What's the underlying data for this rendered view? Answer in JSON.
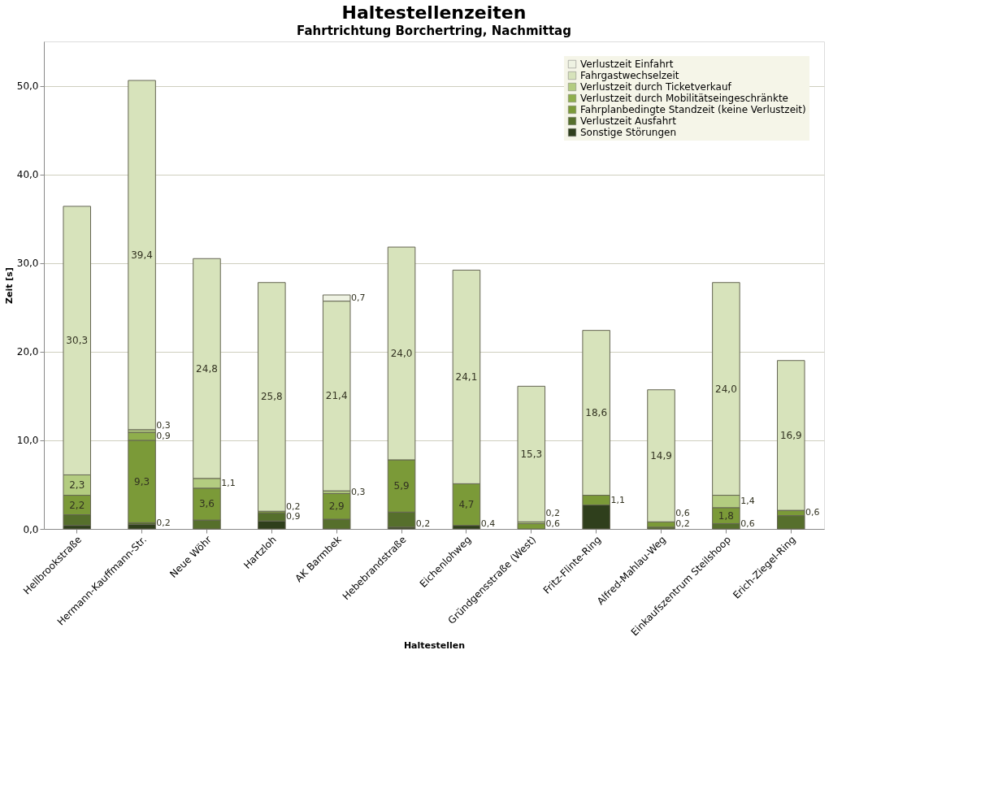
{
  "chart_data": {
    "type": "bar",
    "stacked": true,
    "title": "Haltestellenzeiten",
    "subtitle": "Fahrtrichtung Borchertring, Nachmittag",
    "xlabel": "Haltestellen",
    "ylabel": "Zeit [s]",
    "categories": [
      "Hellbrookstraße",
      "Hermann-Kauffmann-Str.",
      "Neue Wöhr",
      "Hartzloh",
      "AK Barmbek",
      "Hebebrandstraße",
      "Eichenlohweg",
      "Gründgensstraße (West)",
      "Fritz-Flinte-Ring",
      "Alfred-Mahlau-Weg",
      "Einkaufszentrum Steilshoop",
      "Erich-Ziegel-Ring"
    ],
    "series": [
      {
        "name": "Sonstige Störungen",
        "color": "#2f3f1c",
        "values": [
          0.4,
          0.5,
          null,
          0.9,
          null,
          0.2,
          0.4,
          null,
          2.7,
          null,
          null,
          null
        ],
        "value_labels": [
          null,
          null,
          null,
          null,
          null,
          "0,2",
          "0,4",
          null,
          null,
          null,
          null,
          null
        ]
      },
      {
        "name": "Verlustzeit Ausfahrt",
        "color": "#566f2c",
        "values": [
          1.2,
          0.2,
          1.0,
          0.9,
          1.1,
          1.7,
          null,
          null,
          null,
          0.2,
          0.6,
          1.5
        ],
        "value_labels": [
          null,
          "0,2",
          null,
          "0,9",
          null,
          null,
          null,
          null,
          null,
          "0,2",
          "0,6",
          null
        ]
      },
      {
        "name": "Fahrplanbedingte Standzeit (keine Verlustzeit)",
        "color": "#7b9a38",
        "values": [
          2.2,
          9.3,
          3.6,
          0.2,
          2.9,
          5.9,
          4.7,
          0.6,
          1.1,
          0.6,
          1.8,
          0.6
        ],
        "value_labels": [
          "2,2",
          "9,3",
          "3,6",
          "0,2",
          "2,9",
          "5,9",
          "4,7",
          "0,6",
          "1,1",
          "0,6",
          "1,8",
          "0,6"
        ]
      },
      {
        "name": "Verlustzeit durch Mobilitätseingeschränkte",
        "color": "#8fae4c",
        "values": [
          null,
          0.9,
          null,
          null,
          null,
          null,
          null,
          null,
          null,
          null,
          null,
          null
        ],
        "value_labels": [
          null,
          "0,9",
          null,
          null,
          null,
          null,
          null,
          null,
          null,
          null,
          null,
          null
        ]
      },
      {
        "name": "Verlustzeit durch Ticketverkauf",
        "color": "#b3cc80",
        "values": [
          2.3,
          0.3,
          1.1,
          null,
          0.3,
          null,
          null,
          0.2,
          null,
          null,
          1.4,
          null
        ],
        "value_labels": [
          "2,3",
          "0,3",
          "1,1",
          null,
          "0,3",
          null,
          null,
          "0,2",
          null,
          null,
          "1,4",
          null
        ]
      },
      {
        "name": "Fahrgastwechselzeit",
        "color": "#d7e3bb",
        "values": [
          30.3,
          39.4,
          24.8,
          25.8,
          21.4,
          24.0,
          24.1,
          15.3,
          18.6,
          14.9,
          24.0,
          16.9
        ],
        "value_labels": [
          "30,3",
          "39,4",
          "24,8",
          "25,8",
          "21,4",
          "24,0",
          "24,1",
          "15,3",
          "18,6",
          "14,9",
          "24,0",
          "16,9"
        ]
      },
      {
        "name": "Verlustzeit Einfahrt",
        "color": "#eef2e2",
        "values": [
          null,
          null,
          null,
          null,
          0.7,
          null,
          null,
          null,
          null,
          null,
          null,
          null
        ],
        "value_labels": [
          null,
          null,
          null,
          null,
          "0,7",
          null,
          null,
          null,
          null,
          null,
          null,
          null
        ]
      }
    ],
    "ylim": [
      0,
      55
    ],
    "yticks": [
      {
        "value": 0,
        "label": "0,0"
      },
      {
        "value": 10,
        "label": "10,0"
      },
      {
        "value": 20,
        "label": "20,0"
      },
      {
        "value": 30,
        "label": "30,0"
      },
      {
        "value": 40,
        "label": "40,0"
      },
      {
        "value": 50,
        "label": "50,0"
      }
    ],
    "grid": "y",
    "legend": "top right"
  }
}
